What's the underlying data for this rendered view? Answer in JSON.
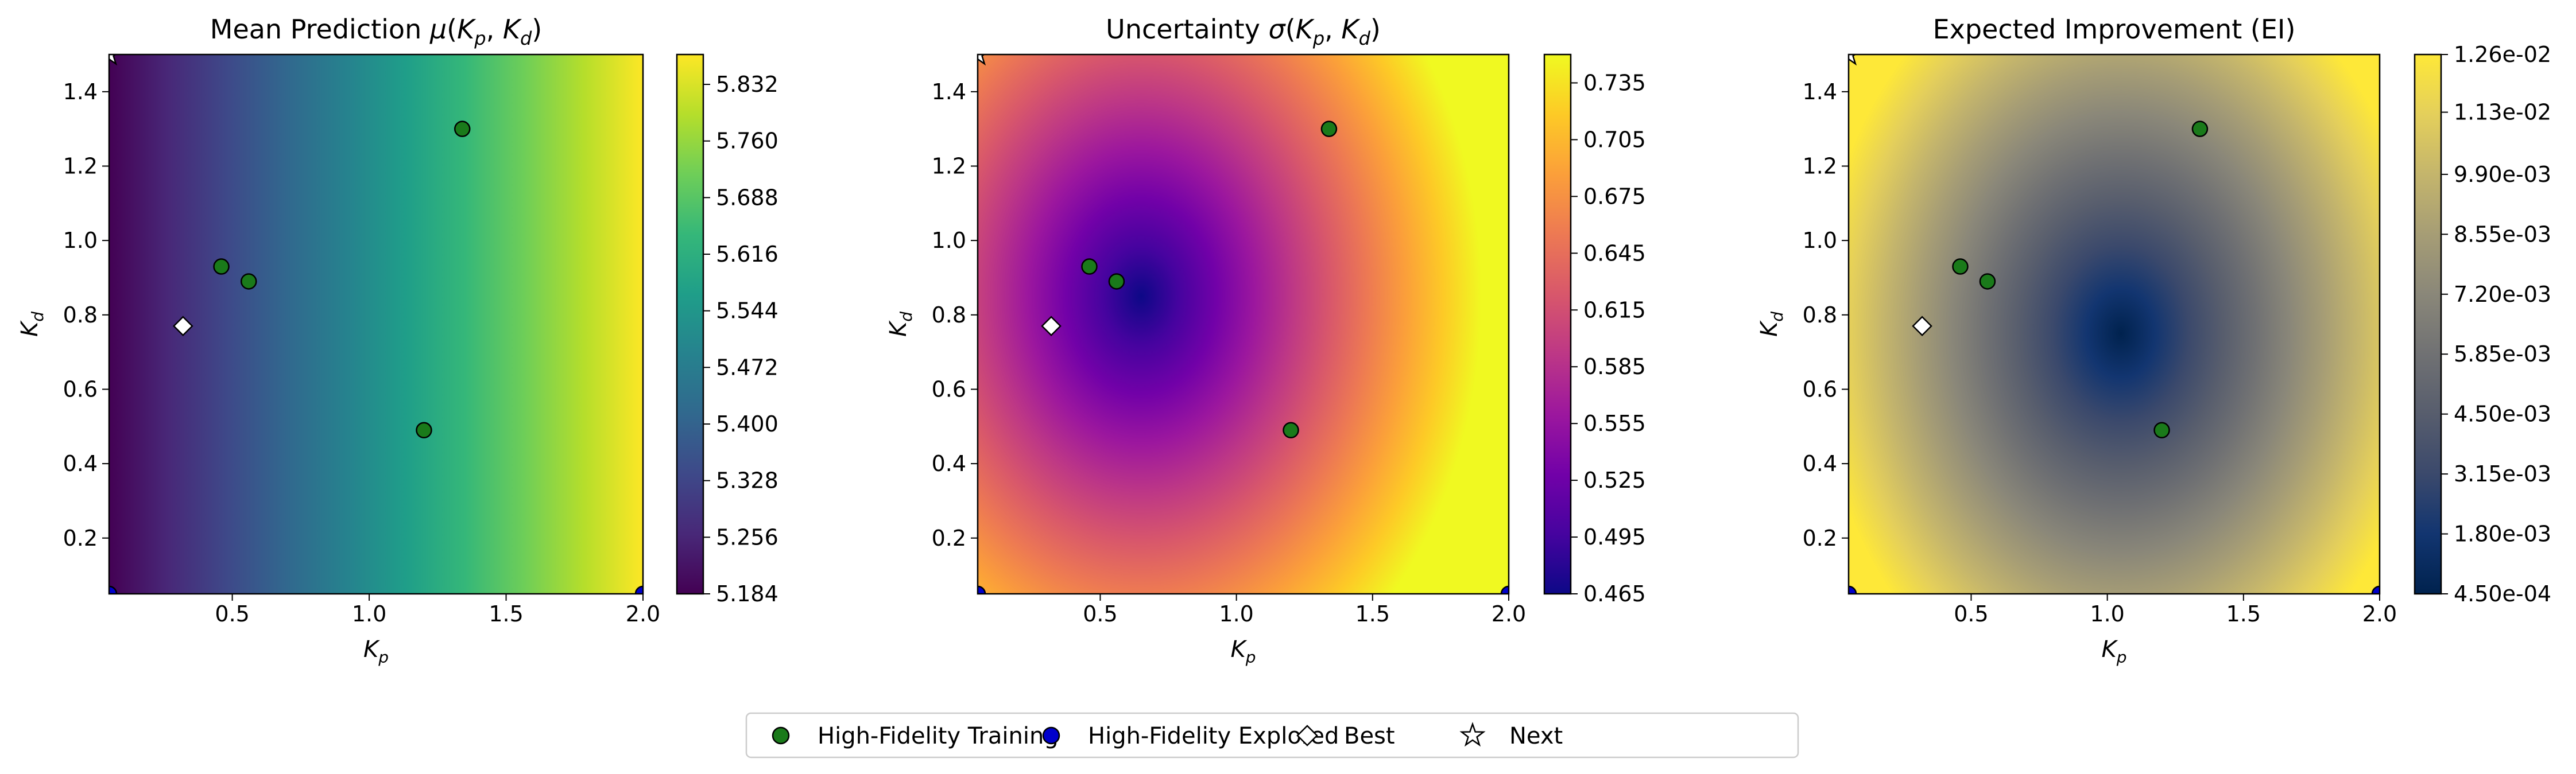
{
  "chart_data": [
    {
      "type": "heatmap",
      "title": "Mean Prediction μ(K_p, K_d)",
      "title_parts": {
        "prefix": "Mean Prediction ",
        "fn": "μ",
        "var1": "K",
        "sub1": "p",
        "var2": "K",
        "sub2": "d"
      },
      "xlabel": {
        "var": "K",
        "sub": "p"
      },
      "ylabel": {
        "var": "K",
        "sub": "d"
      },
      "xlim": [
        0.05,
        2.0
      ],
      "ylim": [
        0.05,
        1.5
      ],
      "xticks": [
        "0.5",
        "1.0",
        "1.5",
        "2.0"
      ],
      "xtick_values": [
        0.5,
        1.0,
        1.5,
        2.0
      ],
      "yticks": [
        "0.2",
        "0.4",
        "0.6",
        "0.8",
        "1.0",
        "1.2",
        "1.4"
      ],
      "ytick_values": [
        0.2,
        0.4,
        0.6,
        0.8,
        1.0,
        1.2,
        1.4
      ],
      "colormap": "viridis",
      "colors": [
        "#440154",
        "#482878",
        "#3e4989",
        "#31688e",
        "#26828e",
        "#1f9e89",
        "#35b779",
        "#6ece58",
        "#b5de2b",
        "#fde725"
      ],
      "field": "linear increasing with K_p",
      "colorbar_ticks": [
        "5.184",
        "5.256",
        "5.328",
        "5.400",
        "5.472",
        "5.544",
        "5.616",
        "5.688",
        "5.760",
        "5.832"
      ],
      "colorbar_range": [
        5.184,
        5.87
      ]
    },
    {
      "type": "heatmap",
      "title": "Uncertainty σ(K_p, K_d)",
      "title_parts": {
        "prefix": "Uncertainty ",
        "fn": "σ",
        "var1": "K",
        "sub1": "p",
        "var2": "K",
        "sub2": "d"
      },
      "xlabel": {
        "var": "K",
        "sub": "p"
      },
      "ylabel": {
        "var": "K",
        "sub": "d"
      },
      "xlim": [
        0.05,
        2.0
      ],
      "ylim": [
        0.05,
        1.5
      ],
      "xticks": [
        "0.5",
        "1.0",
        "1.5",
        "2.0"
      ],
      "xtick_values": [
        0.5,
        1.0,
        1.5,
        2.0
      ],
      "yticks": [
        "0.2",
        "0.4",
        "0.6",
        "0.8",
        "1.0",
        "1.2",
        "1.4"
      ],
      "ytick_values": [
        0.2,
        0.4,
        0.6,
        0.8,
        1.0,
        1.2,
        1.4
      ],
      "colormap": "plasma",
      "colors": [
        "#0d0887",
        "#46039f",
        "#7201a8",
        "#9c179e",
        "#bd3786",
        "#d8576b",
        "#ed7953",
        "#fb9f3a",
        "#fdca26",
        "#f0f921"
      ],
      "field": "radial minimum near (0.65, 0.85)",
      "colorbar_ticks": [
        "0.465",
        "0.495",
        "0.525",
        "0.555",
        "0.585",
        "0.615",
        "0.645",
        "0.675",
        "0.705",
        "0.735"
      ],
      "colorbar_range": [
        0.465,
        0.75
      ]
    },
    {
      "type": "heatmap",
      "title": "Expected Improvement (EI)",
      "xlabel": {
        "var": "K",
        "sub": "p"
      },
      "ylabel": {
        "var": "K",
        "sub": "d"
      },
      "xlim": [
        0.05,
        2.0
      ],
      "ylim": [
        0.05,
        1.5
      ],
      "xticks": [
        "0.5",
        "1.0",
        "1.5",
        "2.0"
      ],
      "xtick_values": [
        0.5,
        1.0,
        1.5,
        2.0
      ],
      "yticks": [
        "0.2",
        "0.4",
        "0.6",
        "0.8",
        "1.0",
        "1.2",
        "1.4"
      ],
      "ytick_values": [
        0.2,
        0.4,
        0.6,
        0.8,
        1.0,
        1.2,
        1.4
      ],
      "colormap": "cividis",
      "colors": [
        "#00224e",
        "#123570",
        "#3b496c",
        "#575d6d",
        "#707173",
        "#8a8779",
        "#a69d75",
        "#c4b56c",
        "#e4cf5b",
        "#fee838"
      ],
      "field": "radial minimum near (1.05, 0.75)",
      "colorbar_ticks": [
        "4.50e-04",
        "1.80e-03",
        "3.15e-03",
        "4.50e-03",
        "5.85e-03",
        "7.20e-03",
        "8.55e-03",
        "9.90e-03",
        "1.13e-02",
        "1.26e-02"
      ],
      "colorbar_range": [
        0.00045,
        0.0126
      ]
    }
  ],
  "points": {
    "high_fidelity_training": [
      {
        "x": 0.46,
        "y": 0.93
      },
      {
        "x": 0.56,
        "y": 0.89
      },
      {
        "x": 1.34,
        "y": 1.3
      },
      {
        "x": 1.2,
        "y": 0.49
      }
    ],
    "high_fidelity_explored": [
      {
        "x": 0.05,
        "y": 0.05
      },
      {
        "x": 2.0,
        "y": 0.05
      }
    ],
    "best": [
      {
        "x": 0.32,
        "y": 0.77
      }
    ],
    "next": [
      {
        "x": 0.05,
        "y": 1.5
      }
    ]
  },
  "legend": {
    "placement": "bottom-center",
    "entries": [
      {
        "label": "High-Fidelity Training",
        "marker": "circle",
        "color": "#1a7a1a"
      },
      {
        "label": "High-Fidelity Explored",
        "marker": "circle",
        "color": "#0000cc"
      },
      {
        "label": "Best",
        "marker": "diamond",
        "color": "#ffffff"
      },
      {
        "label": "Next",
        "marker": "star",
        "color": "#ffffff"
      }
    ]
  }
}
